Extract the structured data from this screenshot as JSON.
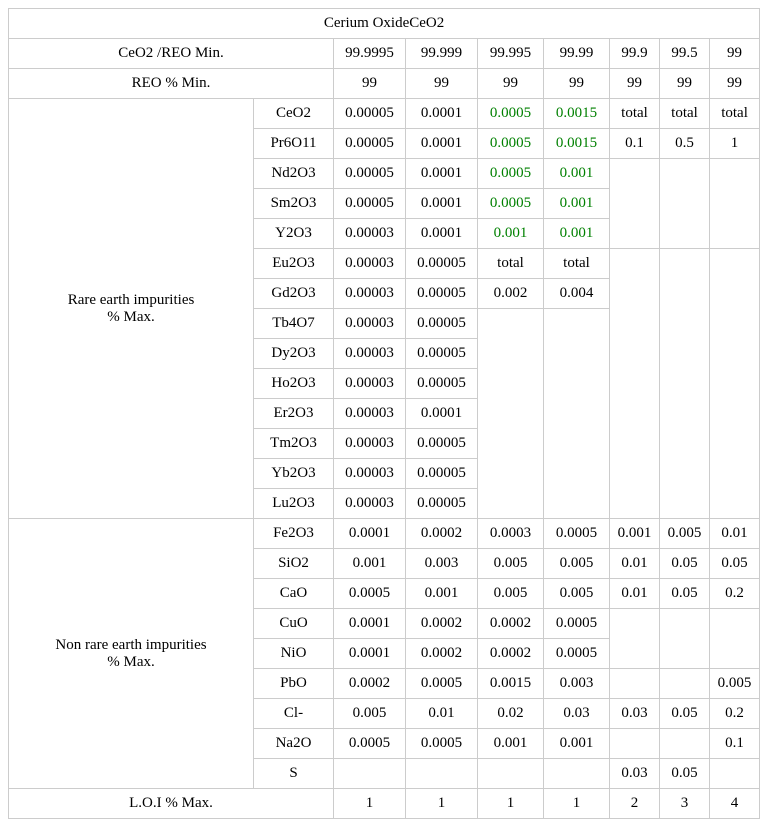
{
  "colors": {
    "border": "#cccccc",
    "text_default": "#000000",
    "text_green": "#008000",
    "background": "#ffffff"
  },
  "typography": {
    "font_family": "Times New Roman",
    "font_size_pt": 12
  },
  "title": "Cerium OxideCeO2",
  "header_rows": [
    {
      "label": "CeO2 /REO Min.",
      "vals": [
        "99.9995",
        "99.999",
        "99.995",
        "99.99",
        "99.9",
        "99.5",
        "99"
      ]
    },
    {
      "label": "REO % Min.",
      "vals": [
        "99",
        "99",
        "99",
        "99",
        "99",
        "99",
        "99"
      ]
    }
  ],
  "rare_earth_label": "Rare earth impurities\n% Max.",
  "rare_earth_rows": [
    {
      "name": "CeO2",
      "c1": "0.00005",
      "c2": "0.0001",
      "c3": "0.0005",
      "c3_green": true,
      "c4": "0.0015",
      "c4_green": true,
      "c5": "total",
      "c6": "total",
      "c7": "total"
    },
    {
      "name": "Pr6O11",
      "c1": "0.00005",
      "c2": "0.0001",
      "c3": "0.0005",
      "c3_green": true,
      "c4": "0.0015",
      "c4_green": true,
      "c5": "0.1",
      "c6": "0.5",
      "c7": "1"
    },
    {
      "name": "Nd2O3",
      "c1": "0.00005",
      "c2": "0.0001",
      "c3": "0.0005",
      "c3_green": true,
      "c4": "0.001",
      "c4_green": true
    },
    {
      "name": "Sm2O3",
      "c1": "0.00005",
      "c2": "0.0001",
      "c3": "0.0005",
      "c3_green": true,
      "c4": "0.001",
      "c4_green": true
    },
    {
      "name": "Y2O3",
      "c1": "0.00003",
      "c2": "0.0001",
      "c3": "0.001",
      "c3_green": true,
      "c4": "0.001",
      "c4_green": true
    },
    {
      "name": "Eu2O3",
      "c1": "0.00003",
      "c2": "0.00005",
      "c3": "total",
      "c4": "total"
    },
    {
      "name": "Gd2O3",
      "c1": "0.00003",
      "c2": "0.00005",
      "c3": "0.002",
      "c4": "0.004"
    },
    {
      "name": "Tb4O7",
      "c1": "0.00003",
      "c2": "0.00005"
    },
    {
      "name": "Dy2O3",
      "c1": "0.00003",
      "c2": "0.00005"
    },
    {
      "name": "Ho2O3",
      "c1": "0.00003",
      "c2": "0.00005"
    },
    {
      "name": "Er2O3",
      "c1": "0.00003",
      "c2": "0.0001"
    },
    {
      "name": "Tm2O3",
      "c1": "0.00003",
      "c2": "0.00005"
    },
    {
      "name": "Yb2O3",
      "c1": "0.00003",
      "c2": "0.00005"
    },
    {
      "name": "Lu2O3",
      "c1": "0.00003",
      "c2": "0.00005"
    }
  ],
  "non_rare_earth_label": "Non rare earth impurities\n% Max.",
  "non_rare_earth_rows": [
    {
      "name": "Fe2O3",
      "c1": "0.0001",
      "c2": "0.0002",
      "c3": "0.0003",
      "c4": "0.0005",
      "c5": "0.001",
      "c6": "0.005",
      "c7": "0.01"
    },
    {
      "name": "SiO2",
      "c1": "0.001",
      "c2": "0.003",
      "c3": "0.005",
      "c4": "0.005",
      "c5": "0.01",
      "c6": "0.05",
      "c7": "0.05"
    },
    {
      "name": "CaO",
      "c1": "0.0005",
      "c2": "0.001",
      "c3": "0.005",
      "c4": "0.005",
      "c5": "0.01",
      "c6": "0.05",
      "c7": "0.2"
    },
    {
      "name": "CuO",
      "c1": "0.0001",
      "c2": "0.0002",
      "c3": "0.0002",
      "c4": "0.0005"
    },
    {
      "name": "NiO",
      "c1": "0.0001",
      "c2": "0.0002",
      "c3": "0.0002",
      "c4": "0.0005"
    },
    {
      "name": "PbO",
      "c1": "0.0002",
      "c2": "0.0005",
      "c3": "0.0015",
      "c4": "0.003",
      "c7": "0.005"
    },
    {
      "name": "Cl-",
      "c1": "0.005",
      "c2": "0.01",
      "c3": "0.02",
      "c4": "0.03",
      "c5": "0.03",
      "c6": "0.05",
      "c7": "0.2"
    },
    {
      "name": "Na2O",
      "c1": "0.0005",
      "c2": "0.0005",
      "c3": "0.001",
      "c4": "0.001",
      "c7": "0.1"
    },
    {
      "name": "S",
      "c5": "0.03",
      "c6": "0.05"
    }
  ],
  "loi": {
    "label": "L.O.I % Max.",
    "vals": [
      "1",
      "1",
      "1",
      "1",
      "2",
      "3",
      "4"
    ]
  }
}
